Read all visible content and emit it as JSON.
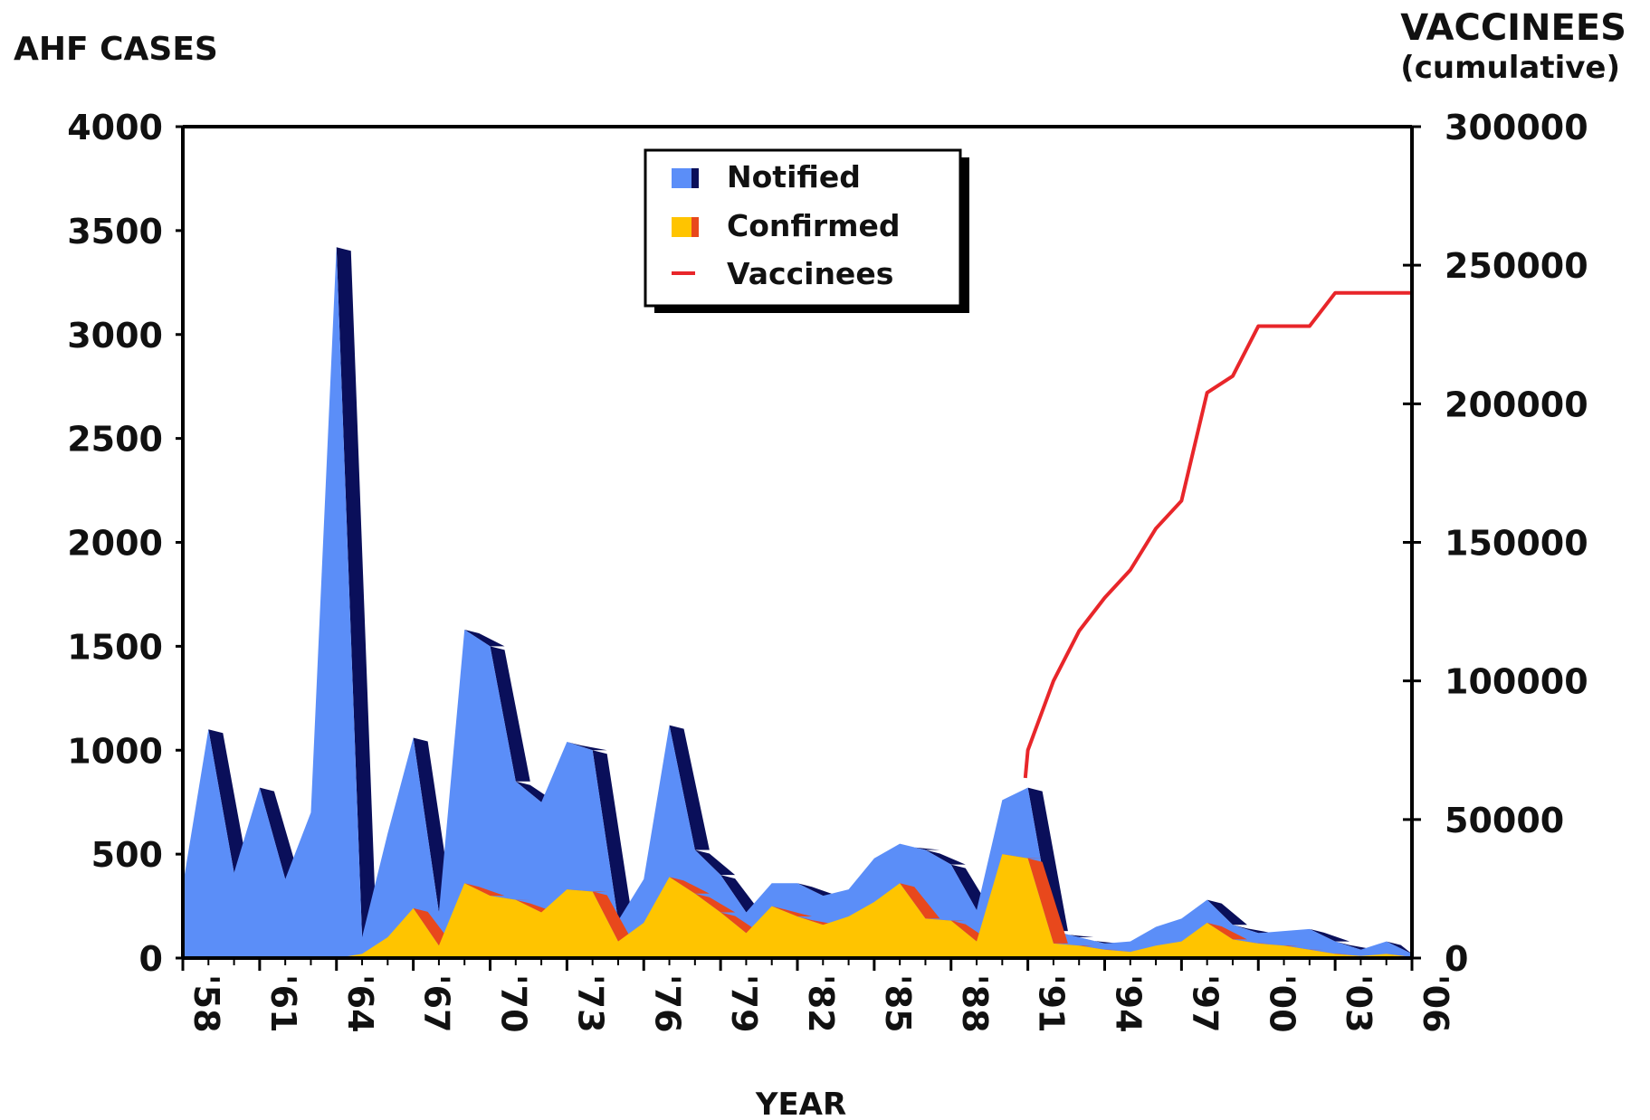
{
  "chart_data": {
    "type": "area",
    "y_left_label": "AHF CASES",
    "y_right_label_line1": "VACCINEES",
    "y_right_label_line2": "(cumulative)",
    "xlabel": "YEAR",
    "x_ticks": [
      "'58",
      "'61",
      "'64",
      "'67",
      "'70",
      "'73",
      "'76",
      "'79",
      "'82",
      "'85",
      "'88",
      "'91",
      "'94",
      "'97",
      "'00",
      "'03",
      "'06"
    ],
    "y_left_ticks": [
      "0",
      "500",
      "1000",
      "1500",
      "2000",
      "2500",
      "3000",
      "3500",
      "4000"
    ],
    "y_right_ticks": [
      "0",
      "50000",
      "100000",
      "150000",
      "200000",
      "250000",
      "300000"
    ],
    "ylim_left": [
      0,
      4000
    ],
    "ylim_right": [
      0,
      300000
    ],
    "xlim": [
      1958,
      2006
    ],
    "legend": {
      "placement": "top-center",
      "items": [
        {
          "label": "Notified",
          "color": "#5b8ef8",
          "dark": "#0a0f5a"
        },
        {
          "label": "Confirmed",
          "color": "#ffc400",
          "dark": "#e8481c"
        },
        {
          "label": "Vaccinees",
          "color": "#e8262a"
        }
      ]
    },
    "series": [
      {
        "name": "Notified",
        "x": [
          1958,
          1959,
          1960,
          1961,
          1962,
          1963,
          1964,
          1965,
          1966,
          1967,
          1968,
          1969,
          1970,
          1971,
          1972,
          1973,
          1974,
          1975,
          1976,
          1977,
          1978,
          1979,
          1980,
          1981,
          1982,
          1983,
          1984,
          1985,
          1986,
          1987,
          1988,
          1989,
          1990,
          1991,
          1992,
          1993,
          1994,
          1995,
          1996,
          1997,
          1998,
          1999,
          2000,
          2001,
          2002,
          2003,
          2004,
          2005,
          2006
        ],
        "values": [
          350,
          1100,
          410,
          820,
          380,
          700,
          3420,
          100,
          600,
          1060,
          220,
          1580,
          1500,
          850,
          750,
          1040,
          1000,
          180,
          380,
          1120,
          520,
          400,
          220,
          360,
          360,
          300,
          330,
          480,
          550,
          520,
          450,
          230,
          760,
          820,
          130,
          100,
          70,
          80,
          150,
          190,
          280,
          160,
          120,
          130,
          140,
          80,
          40,
          80,
          20
        ]
      },
      {
        "name": "Confirmed",
        "x": [
          1958,
          1959,
          1960,
          1961,
          1962,
          1963,
          1964,
          1965,
          1966,
          1967,
          1968,
          1969,
          1970,
          1971,
          1972,
          1973,
          1974,
          1975,
          1976,
          1977,
          1978,
          1979,
          1980,
          1981,
          1982,
          1983,
          1984,
          1985,
          1986,
          1987,
          1988,
          1989,
          1990,
          1991,
          1992,
          1993,
          1994,
          1995,
          1996,
          1997,
          1998,
          1999,
          2000,
          2001,
          2002,
          2003,
          2004,
          2005,
          2006
        ],
        "values": [
          0,
          0,
          0,
          0,
          0,
          0,
          0,
          20,
          100,
          240,
          60,
          360,
          300,
          280,
          220,
          330,
          320,
          80,
          170,
          390,
          310,
          220,
          120,
          250,
          200,
          160,
          200,
          270,
          360,
          190,
          180,
          80,
          500,
          480,
          70,
          60,
          40,
          30,
          60,
          80,
          170,
          90,
          70,
          60,
          40,
          20,
          10,
          20,
          5
        ]
      },
      {
        "name": "Vaccinees",
        "axis": "right",
        "x": [
          1990.9,
          1991,
          1992,
          1993,
          1994,
          1995,
          1996,
          1997,
          1998,
          1999,
          2000,
          2001,
          2002,
          2003,
          2004,
          2005,
          2006
        ],
        "values": [
          65000,
          75000,
          100000,
          118000,
          130000,
          140000,
          155000,
          165000,
          204000,
          210000,
          228000,
          228000,
          228000,
          240000,
          240000,
          240000,
          240000
        ]
      }
    ]
  }
}
